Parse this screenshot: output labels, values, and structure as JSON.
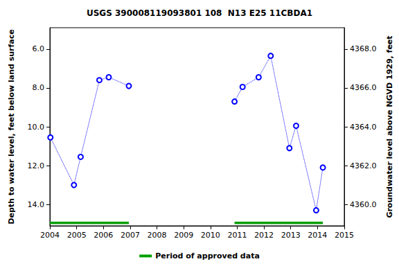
{
  "chart_data": {
    "type": "line",
    "title": "USGS 390008119093801 108  N13 E25 11CBDA1",
    "y_label": "Depth to water level, feet below land surface",
    "y2_label": "Groundwater level above NGVD 1929, feet",
    "x": [
      2004.02,
      2004.9,
      2005.15,
      2005.85,
      2006.2,
      2006.95,
      null,
      2010.9,
      2011.2,
      2011.8,
      2012.25,
      2012.95,
      2013.2,
      2013.95,
      2014.2
    ],
    "series": [
      {
        "color": "#0000ff",
        "marker": "circle",
        "line_style": "dotted",
        "values": [
          10.55,
          13.0,
          11.55,
          7.6,
          7.45,
          7.9,
          null,
          8.7,
          7.95,
          7.45,
          6.35,
          11.1,
          9.95,
          14.3,
          12.1
        ]
      }
    ],
    "approved_periods": {
      "name": "Period of approved data",
      "color": "#00a000",
      "ranges": [
        [
          2004.0,
          2006.95
        ],
        [
          2010.9,
          2014.2
        ]
      ]
    },
    "xlim": [
      2004,
      2015
    ],
    "xticks": [
      2004,
      2005,
      2006,
      2007,
      2008,
      2009,
      2010,
      2011,
      2012,
      2013,
      2014,
      2015
    ],
    "ylim": [
      4.9,
      15.1
    ],
    "yticks": [
      {
        "value": 6,
        "label": "6.0"
      },
      {
        "value": 8,
        "label": "8.0"
      },
      {
        "value": 10,
        "label": "10.0"
      },
      {
        "value": 12,
        "label": "12.0"
      },
      {
        "value": 14,
        "label": "14.0"
      }
    ],
    "y2lim": [
      4369.1,
      4358.9
    ],
    "y2ticks": [
      {
        "value": 4360,
        "label": "4360.0"
      },
      {
        "value": 4362,
        "label": "4362.0"
      },
      {
        "value": 4364,
        "label": "4364.0"
      },
      {
        "value": 4366,
        "label": "4366.0"
      },
      {
        "value": 4368,
        "label": "4368.0"
      }
    ],
    "grid": false,
    "legend": "bottom"
  }
}
